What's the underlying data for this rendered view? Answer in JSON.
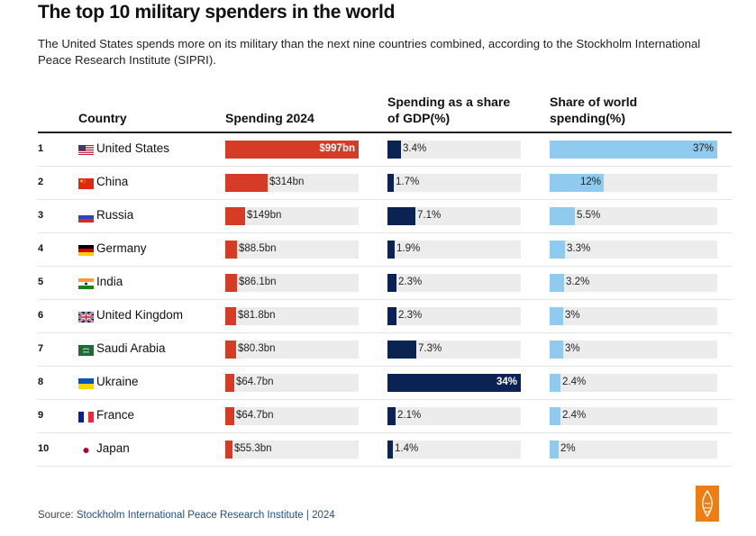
{
  "header": {
    "title": "The top 10 military spenders in the world",
    "subtitle": "The United States spends more on its military than the next nine countries combined, according to the Stockholm International Peace Research Institute (SIPRI)."
  },
  "columns": {
    "country": "Country",
    "spending": "Spending 2024",
    "gdp_line1": "Spending as a share",
    "gdp_line2": "of GDP(%)",
    "world_line1": "Share of world",
    "world_line2": "spending(%)"
  },
  "colors": {
    "spending": "#d63b25",
    "gdp": "#0a2352",
    "world": "#8ecbee",
    "track": "#ececec",
    "logo": "#f07d12"
  },
  "chart_data": {
    "type": "table",
    "title": "The top 10 military spenders in the world",
    "subtitle": "The United States spends more on its military than the next nine countries combined, according to the Stockholm International Peace Research Institute (SIPRI).",
    "columns": [
      "Country",
      "Spending 2024",
      "Spending as a share of GDP(%)",
      "Share of world spending(%)"
    ],
    "scales": {
      "spending_max": 997,
      "gdp_max": 34,
      "world_max": 37
    },
    "rows": [
      {
        "rank": "1",
        "country": "United States",
        "flag": "us-flag",
        "spending": 997,
        "spending_label": "$997bn",
        "gdp": 3.4,
        "gdp_label": "3.4%",
        "world": 37,
        "world_label": "37%"
      },
      {
        "rank": "2",
        "country": "China",
        "flag": "cn-flag",
        "spending": 314,
        "spending_label": "$314bn",
        "gdp": 1.7,
        "gdp_label": "1.7%",
        "world": 12,
        "world_label": "12%"
      },
      {
        "rank": "3",
        "country": "Russia",
        "flag": "ru-flag",
        "spending": 149,
        "spending_label": "$149bn",
        "gdp": 7.1,
        "gdp_label": "7.1%",
        "world": 5.5,
        "world_label": "5.5%"
      },
      {
        "rank": "4",
        "country": "Germany",
        "flag": "de-flag",
        "spending": 88.5,
        "spending_label": "$88.5bn",
        "gdp": 1.9,
        "gdp_label": "1.9%",
        "world": 3.3,
        "world_label": "3.3%"
      },
      {
        "rank": "5",
        "country": "India",
        "flag": "in-flag",
        "spending": 86.1,
        "spending_label": "$86.1bn",
        "gdp": 2.3,
        "gdp_label": "2.3%",
        "world": 3.2,
        "world_label": "3.2%"
      },
      {
        "rank": "6",
        "country": "United Kingdom",
        "flag": "gb-flag",
        "spending": 81.8,
        "spending_label": "$81.8bn",
        "gdp": 2.3,
        "gdp_label": "2.3%",
        "world": 3,
        "world_label": "3%"
      },
      {
        "rank": "7",
        "country": "Saudi Arabia",
        "flag": "sa-flag",
        "spending": 80.3,
        "spending_label": "$80.3bn",
        "gdp": 7.3,
        "gdp_label": "7.3%",
        "world": 3,
        "world_label": "3%"
      },
      {
        "rank": "8",
        "country": "Ukraine",
        "flag": "ua-flag",
        "spending": 64.7,
        "spending_label": "$64.7bn",
        "gdp": 34,
        "gdp_label": "34%",
        "world": 2.4,
        "world_label": "2.4%"
      },
      {
        "rank": "9",
        "country": "France",
        "flag": "fr-flag",
        "spending": 64.7,
        "spending_label": "$64.7bn",
        "gdp": 2.1,
        "gdp_label": "2.1%",
        "world": 2.4,
        "world_label": "2.4%"
      },
      {
        "rank": "10",
        "country": "Japan",
        "flag": "jp-flag",
        "spending": 55.3,
        "spending_label": "$55.3bn",
        "gdp": 1.4,
        "gdp_label": "1.4%",
        "world": 2,
        "world_label": "2%"
      }
    ]
  },
  "footer": {
    "source_prefix": "Source: ",
    "source_link": "Stockholm International Peace Research Institute | 2024",
    "logo": "al-jazeera-logo"
  }
}
